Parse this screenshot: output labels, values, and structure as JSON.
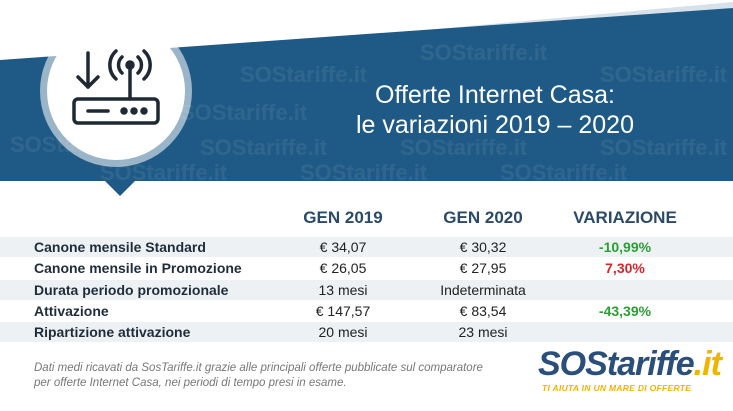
{
  "header": {
    "title_line1": "Offerte Internet Casa:",
    "title_line2": "le variazioni 2019 – 2020",
    "icon": "router-wifi-icon",
    "watermark": "SOStariffe.it"
  },
  "table": {
    "columns": [
      "GEN 2019",
      "GEN 2020",
      "VARIAZIONE"
    ],
    "rows": [
      {
        "label": "Canone mensile Standard",
        "gen2019": "€ 34,07",
        "gen2020": "€ 30,32",
        "variazione": "-10,99%",
        "trend": "positive"
      },
      {
        "label": "Canone mensile in Promozione",
        "gen2019": "€ 26,05",
        "gen2020": "€ 27,95",
        "variazione": "7,30%",
        "trend": "negative"
      },
      {
        "label": "Durata periodo promozionale",
        "gen2019": "13 mesi",
        "gen2020": "Indeterminata",
        "variazione": "",
        "trend": "none"
      },
      {
        "label": "Attivazione",
        "gen2019": "€ 147,57",
        "gen2020": "€ 83,54",
        "variazione": "-43,39%",
        "trend": "positive"
      },
      {
        "label": "Ripartizione attivazione",
        "gen2019": "20 mesi",
        "gen2020": "23 mesi",
        "variazione": "",
        "trend": "none"
      }
    ]
  },
  "footnote": "Dati medi ricavati da SosTariffe.it grazie alle principali offerte pubblicate sul comparatore per offerte Internet Casa, nei periodi di tempo presi in esame.",
  "logo": {
    "part1": "SOS",
    "part2": "tariffe",
    "part3": ".it",
    "tagline": "TI AIUTA IN UN MARE DI OFFERTE"
  },
  "colors": {
    "banner": "#1f5a86",
    "banner_light": "#dfe7ef",
    "header_text": "#2b4a67",
    "positive": "#2aa033",
    "negative": "#d6262a",
    "logo_blue": "#2a4f7a",
    "logo_yellow": "#f0b400"
  }
}
